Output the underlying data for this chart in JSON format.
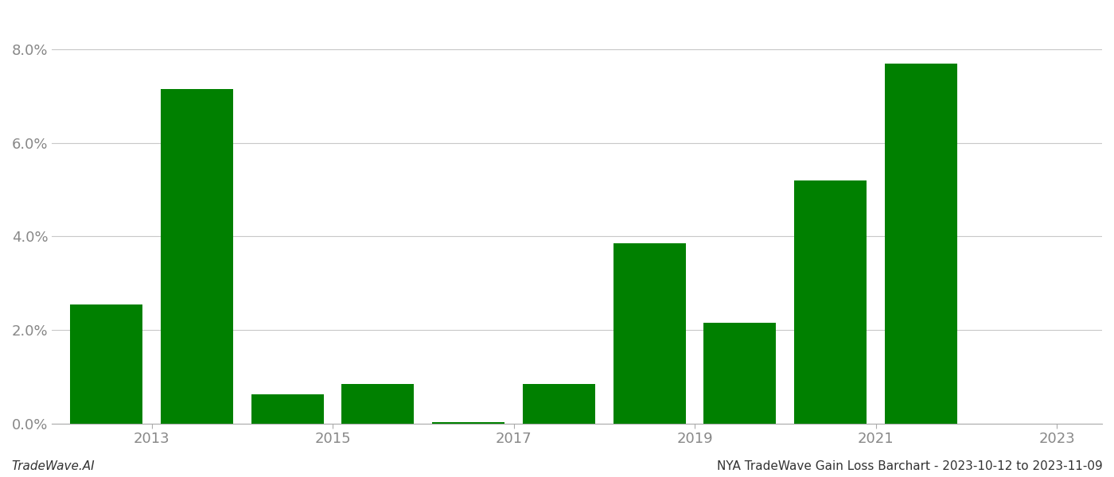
{
  "years": [
    2013,
    2014,
    2015,
    2016,
    2017,
    2018,
    2019,
    2020,
    2021,
    2022
  ],
  "values": [
    0.0255,
    0.0715,
    0.0062,
    0.0085,
    0.0002,
    0.0085,
    0.0385,
    0.0215,
    0.052,
    0.077
  ],
  "bar_color": "#008000",
  "background_color": "#ffffff",
  "grid_color": "#c8c8c8",
  "axis_color": "#aaaaaa",
  "tick_label_color": "#888888",
  "ylim": [
    0.0,
    0.088
  ],
  "yticks": [
    0.0,
    0.02,
    0.04,
    0.06,
    0.08
  ],
  "xtick_positions": [
    2013.5,
    2015.5,
    2017.5,
    2019.5,
    2021.5,
    2023.5
  ],
  "xtick_labels": [
    "2013",
    "2015",
    "2017",
    "2019",
    "2021",
    "2023"
  ],
  "title": "NYA TradeWave Gain Loss Barchart - 2023-10-12 to 2023-11-09",
  "watermark": "TradeWave.AI",
  "title_fontsize": 11,
  "watermark_fontsize": 11,
  "tick_fontsize": 13,
  "xlim": [
    2012.4,
    2024.0
  ]
}
